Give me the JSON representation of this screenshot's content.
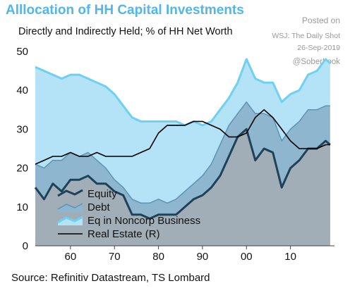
{
  "header": {
    "title": "Alllocation of HH Capital Investments",
    "subtitle": "Directly and Indirectly Held; % of HH Net Worth"
  },
  "stamp": {
    "posted": "Posted on",
    "source": "WSJ: The Daily Shot",
    "date": "26-Sep-2019",
    "handle": "@SoberLook"
  },
  "footer": {
    "source": "Source: Refinitiv Datastream, TS Lombard"
  },
  "colors": {
    "equity_line": "#1e4258",
    "equity_fill": "#a1aeb8",
    "debt_line": "#5f93b3",
    "debt_fill": "#8fb6cf",
    "noncorp_line": "#6fd0f2",
    "noncorp_fill": "#b4e2f6",
    "real_estate": "#000000"
  },
  "chart_data": {
    "type": "area",
    "xlim": [
      1952,
      2020
    ],
    "ylim": [
      0,
      50
    ],
    "x_ticks": [
      "60",
      "70",
      "80",
      "90",
      "00",
      "10"
    ],
    "x_tick_values": [
      1960,
      1970,
      1980,
      1990,
      2000,
      2010
    ],
    "y_ticks": [
      "0",
      "10",
      "20",
      "30",
      "40",
      "50"
    ],
    "y_tick_values": [
      0,
      10,
      20,
      30,
      40,
      50
    ],
    "legend_position": "bottom-left",
    "x": [
      1952,
      1954,
      1956,
      1958,
      1960,
      1962,
      1964,
      1966,
      1968,
      1970,
      1972,
      1974,
      1976,
      1978,
      1980,
      1982,
      1984,
      1986,
      1988,
      1990,
      1992,
      1994,
      1996,
      1998,
      2000,
      2002,
      2004,
      2006,
      2008,
      2010,
      2012,
      2014,
      2016,
      2018,
      2019
    ],
    "series": [
      {
        "name": "Eq in Noncorp Business",
        "layer": "noncorp",
        "values": [
          46,
          45,
          44,
          43,
          44,
          44,
          43,
          42,
          41,
          39,
          36,
          33,
          32,
          32,
          32,
          32,
          32,
          31,
          32,
          31,
          32,
          35,
          38,
          42,
          48,
          43,
          42,
          42,
          37,
          39,
          40,
          44,
          45,
          48,
          47
        ]
      },
      {
        "name": "Debt",
        "layer": "debt",
        "values": [
          21,
          20,
          22,
          22,
          24,
          23,
          24,
          22,
          20,
          17,
          15,
          12,
          11,
          11,
          12,
          11,
          12,
          14,
          16,
          18,
          21,
          26,
          31,
          34,
          37,
          34,
          34,
          33,
          27,
          30,
          32,
          35,
          35,
          36,
          36
        ]
      },
      {
        "name": "Equity",
        "layer": "equity",
        "values": [
          15,
          12,
          16,
          14,
          17,
          17,
          18,
          16,
          16,
          14,
          13,
          8,
          8,
          7,
          8,
          8,
          8,
          10,
          12,
          13,
          15,
          18,
          23,
          28,
          30,
          22,
          25,
          24,
          15,
          20,
          22,
          25,
          25,
          27,
          26
        ]
      },
      {
        "name": "Real Estate (R)",
        "layer": "realestate",
        "values": [
          21,
          22,
          23,
          23,
          24,
          23,
          23,
          24,
          23,
          23,
          23,
          23,
          24,
          25,
          29,
          31,
          31,
          31,
          32,
          32,
          31,
          30,
          28,
          28,
          29,
          33,
          35,
          33,
          30,
          27,
          25,
          25,
          25,
          26,
          26
        ]
      }
    ]
  }
}
